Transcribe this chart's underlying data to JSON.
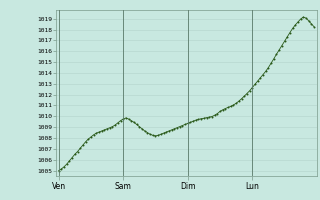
{
  "title": "",
  "background_color": "#c8e8e0",
  "grid_color": "#b8d8d0",
  "line_color": "#2a5a1a",
  "marker_color": "#2a5a1a",
  "ylim_min": 1004.5,
  "ylim_max": 1019.8,
  "yticks": [
    1005,
    1006,
    1007,
    1008,
    1009,
    1010,
    1011,
    1012,
    1013,
    1014,
    1015,
    1016,
    1017,
    1018,
    1019
  ],
  "xtick_labels": [
    "Ven",
    "Sam",
    "Dim",
    "Lun"
  ],
  "xtick_positions": [
    0,
    24,
    48,
    72
  ],
  "total_hours": 96,
  "pressure_data": [
    1005.0,
    1005.15,
    1005.35,
    1005.6,
    1005.9,
    1006.2,
    1006.5,
    1006.75,
    1007.05,
    1007.35,
    1007.65,
    1007.9,
    1008.1,
    1008.3,
    1008.45,
    1008.55,
    1008.65,
    1008.75,
    1008.85,
    1008.95,
    1009.05,
    1009.2,
    1009.4,
    1009.6,
    1009.75,
    1009.85,
    1009.75,
    1009.6,
    1009.45,
    1009.25,
    1009.05,
    1008.85,
    1008.65,
    1008.5,
    1008.35,
    1008.25,
    1008.2,
    1008.25,
    1008.35,
    1008.45,
    1008.55,
    1008.65,
    1008.75,
    1008.85,
    1008.95,
    1009.05,
    1009.15,
    1009.25,
    1009.35,
    1009.45,
    1009.55,
    1009.65,
    1009.72,
    1009.78,
    1009.82,
    1009.88,
    1009.93,
    1009.98,
    1010.1,
    1010.25,
    1010.45,
    1010.6,
    1010.72,
    1010.82,
    1010.92,
    1011.05,
    1011.2,
    1011.4,
    1011.62,
    1011.85,
    1012.1,
    1012.35,
    1012.65,
    1012.95,
    1013.25,
    1013.55,
    1013.85,
    1014.15,
    1014.5,
    1014.9,
    1015.3,
    1015.72,
    1016.12,
    1016.52,
    1016.92,
    1017.32,
    1017.72,
    1018.1,
    1018.42,
    1018.7,
    1018.97,
    1019.15,
    1019.05,
    1018.8,
    1018.52,
    1018.25
  ]
}
